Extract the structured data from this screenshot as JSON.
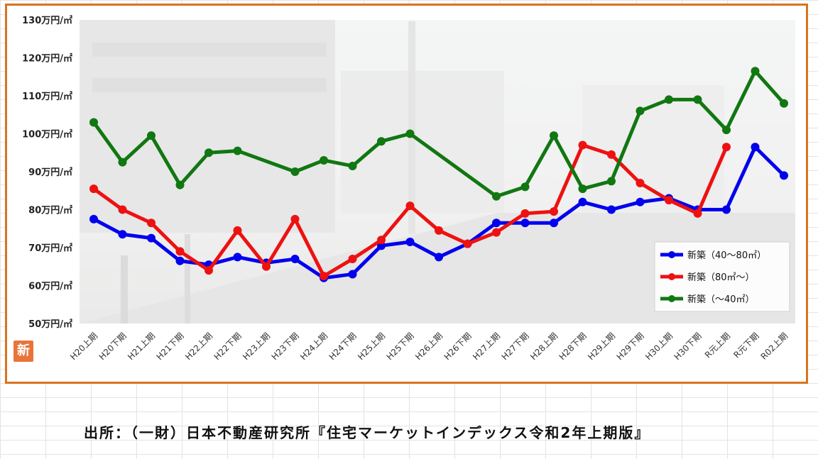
{
  "badge": {
    "label": "新"
  },
  "source": {
    "text": "出所：（一財）日本不動産研究所『住宅マーケットインデックス令和2年上期版』"
  },
  "chart_data": {
    "type": "line",
    "title": "",
    "xlabel": "",
    "ylabel": "",
    "ylim": [
      50,
      130
    ],
    "y_ticks": [
      50,
      60,
      70,
      80,
      90,
      100,
      110,
      120,
      130
    ],
    "y_tick_labels": [
      "50万円/㎡",
      "60万円/㎡",
      "70万円/㎡",
      "80万円/㎡",
      "90万円/㎡",
      "100万円/㎡",
      "110万円/㎡",
      "120万円/㎡",
      "130万円/㎡"
    ],
    "categories": [
      "H20上期",
      "H20下期",
      "H21上期",
      "H21下期",
      "H22上期",
      "H22下期",
      "H23上期",
      "H23下期",
      "H24上期",
      "H24下期",
      "H25上期",
      "H25下期",
      "H26上期",
      "H26下期",
      "H27上期",
      "H27下期",
      "H28上期",
      "H28下期",
      "H29上期",
      "H29下期",
      "H30上期",
      "H30下期",
      "R元上期",
      "R元下期",
      "R02上期"
    ],
    "legend_position": "bottom-right",
    "grid": false,
    "series": [
      {
        "name": "新築（40～80㎡）",
        "color": "#0000ee",
        "values": [
          77.5,
          73.5,
          72.5,
          66.5,
          65.5,
          67.5,
          66,
          67,
          62,
          63,
          70.5,
          71.5,
          67.5,
          71,
          76.5,
          76.5,
          76.5,
          82,
          80,
          82,
          83,
          80,
          80,
          96.5,
          89
        ]
      },
      {
        "name": "新築（80㎡～）",
        "color": "#ee1111",
        "values": [
          85.5,
          80,
          76.5,
          69,
          64,
          74.5,
          65,
          77.5,
          62.5,
          67,
          72,
          81,
          74.5,
          71,
          74,
          79,
          79.5,
          97,
          94.5,
          87,
          82.5,
          79,
          96.5,
          null,
          null
        ]
      },
      {
        "name": "新築（～40㎡）",
        "color": "#117711",
        "values": [
          103,
          92.5,
          99.5,
          86.5,
          95,
          95.5,
          null,
          90,
          93,
          91.5,
          98,
          100,
          null,
          null,
          83.5,
          86,
          99.5,
          85.5,
          87.5,
          106,
          109,
          109,
          101,
          116.5,
          108
        ]
      }
    ]
  }
}
